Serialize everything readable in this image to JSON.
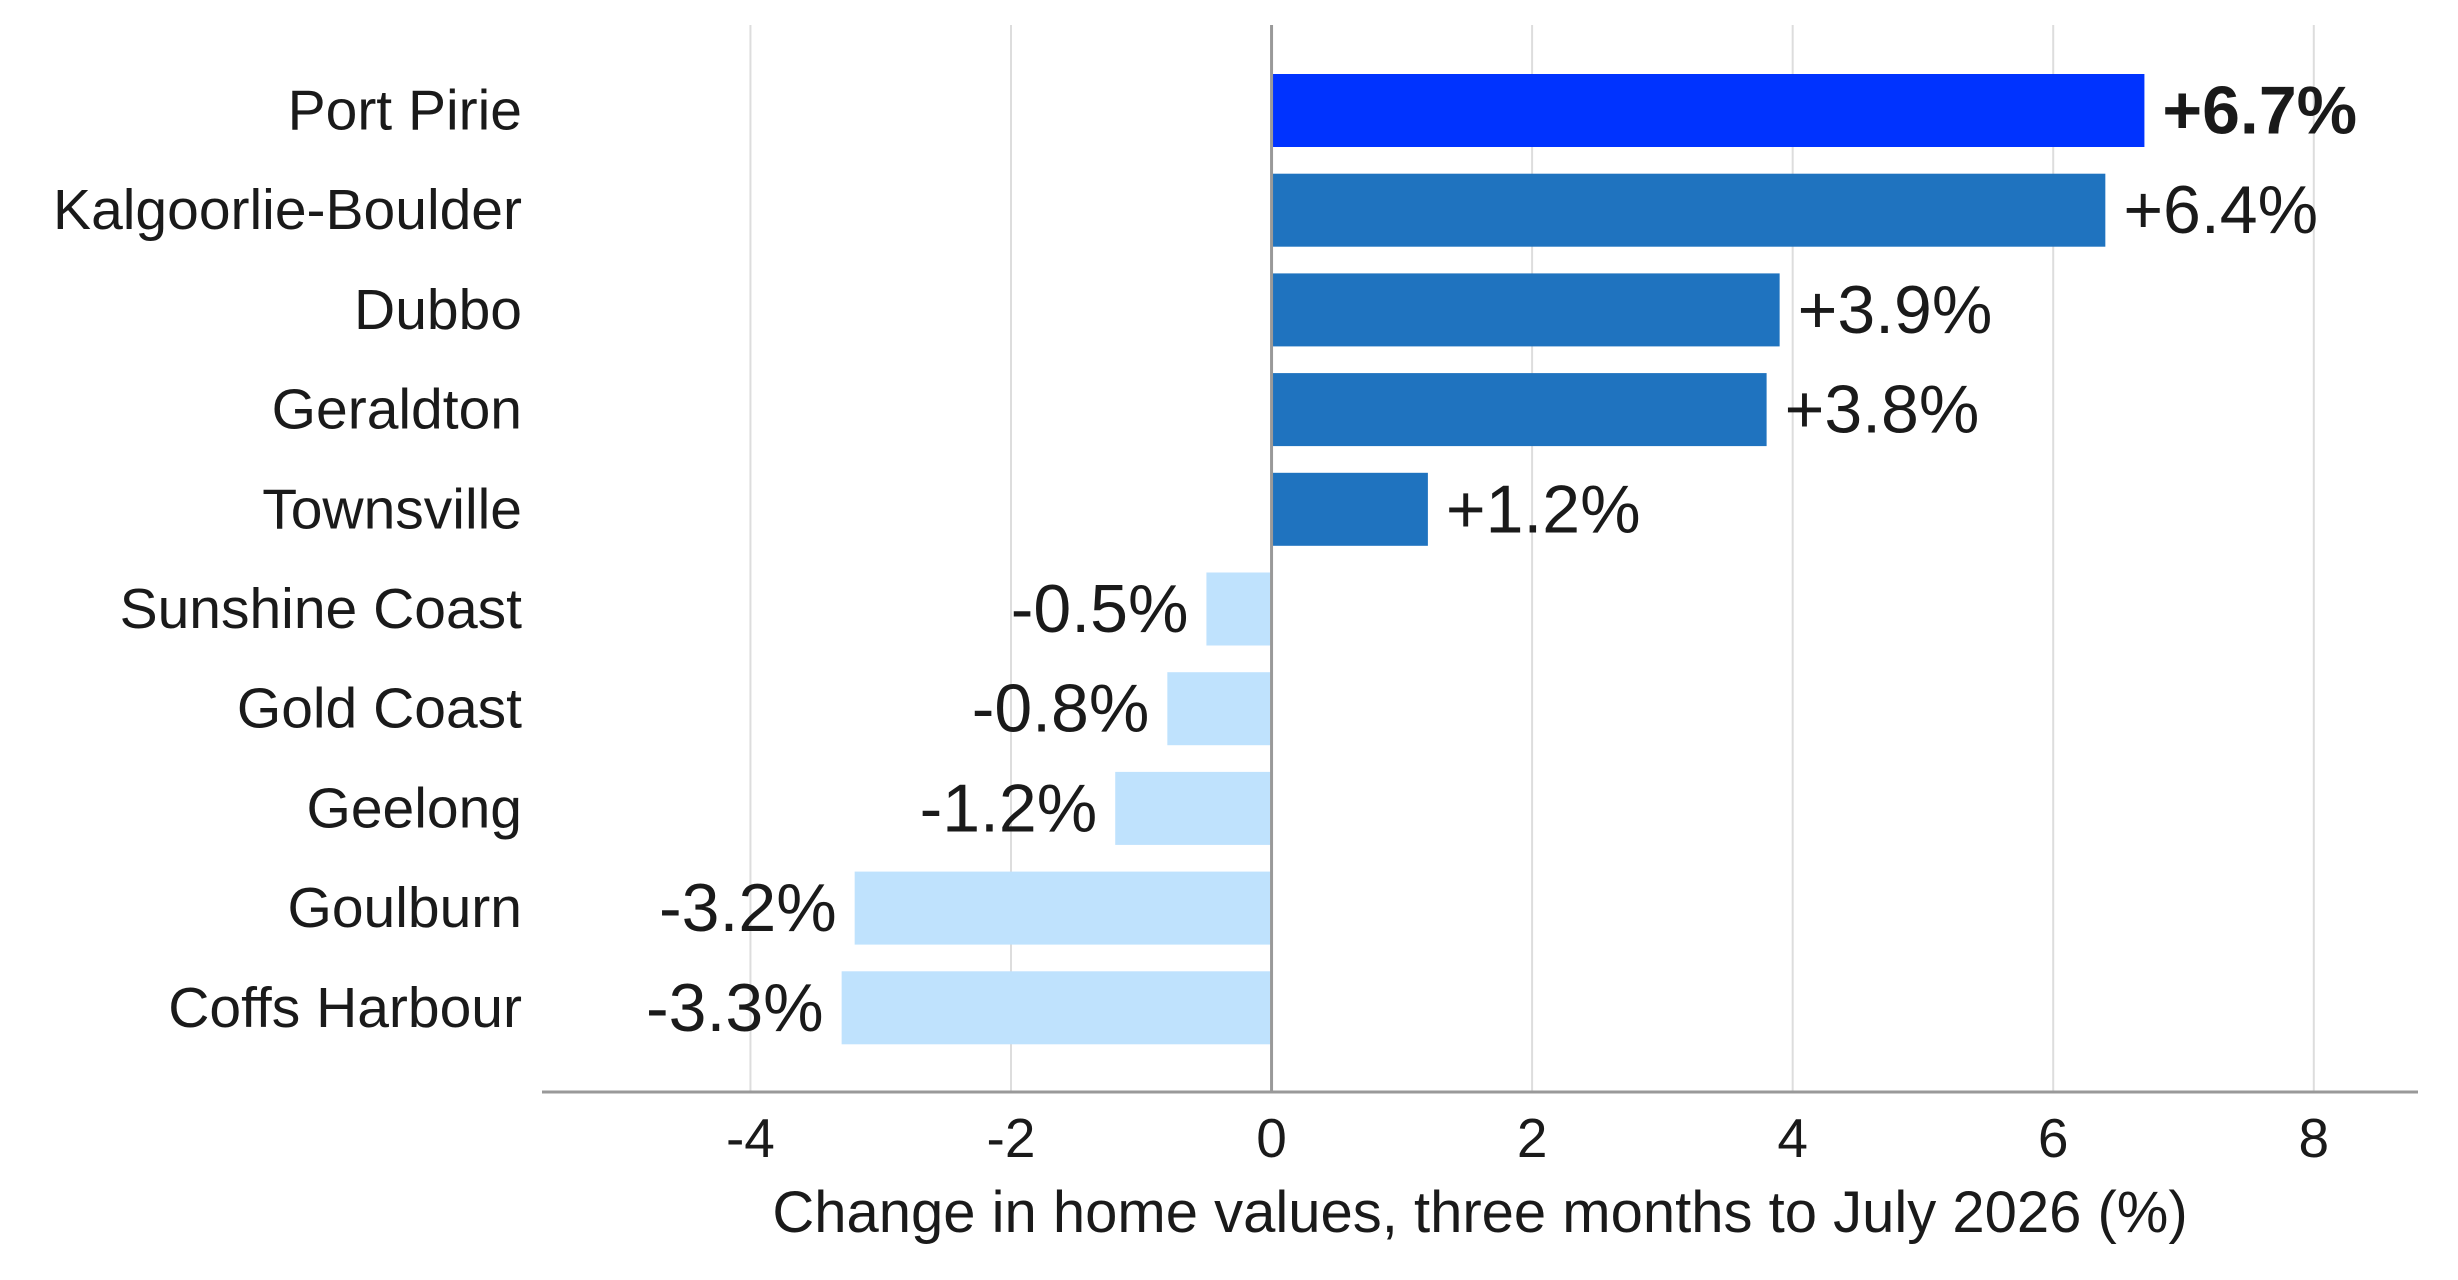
{
  "chart_data": {
    "type": "bar",
    "orientation": "horizontal",
    "categories": [
      "Port Pirie",
      "Kalgoorlie-Boulder",
      "Dubbo",
      "Geraldton",
      "Townsville",
      "Sunshine Coast",
      "Gold Coast",
      "Geelong",
      "Goulburn",
      "Coffs Harbour"
    ],
    "values": [
      6.7,
      6.4,
      3.9,
      3.8,
      1.2,
      -0.5,
      -0.8,
      -1.2,
      -3.2,
      -3.3
    ],
    "data_labels": [
      "+6.7%",
      "+6.4%",
      "+3.9%",
      "+3.8%",
      "+1.2%",
      "-0.5%",
      "-0.8%",
      "-1.2%",
      "-3.2%",
      "-3.3%"
    ],
    "highlight_category": "Port Pirie",
    "title": "",
    "xlabel": "Change in home values, three months to July 2026 (%)",
    "ylabel": "",
    "xlim": [
      -5.6,
      8.8
    ],
    "xticks": [
      -4,
      -2,
      0,
      2,
      4,
      6,
      8
    ],
    "xtick_labels": [
      "-4",
      "-2",
      "0",
      "2",
      "4",
      "6",
      "8"
    ],
    "grid": "vertical",
    "legend": "none",
    "colors": {
      "highlight": "#0033ff",
      "positive": "#1f73bf",
      "negative": "#bfe2fd",
      "gridline": "#dddddd",
      "axis": "#999999",
      "text": "#1a1a1a"
    }
  }
}
